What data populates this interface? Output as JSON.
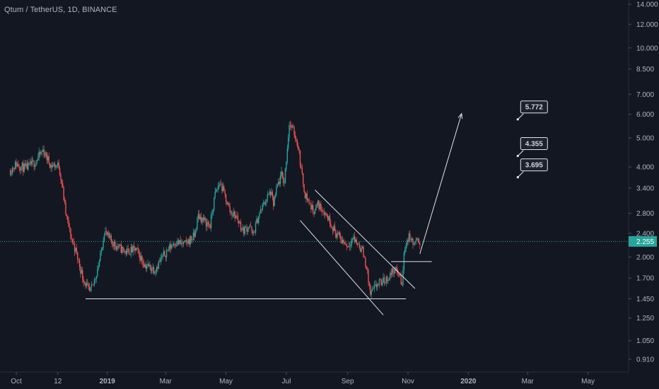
{
  "header": {
    "title": "Qtum / TetherUS, 1D, BINANCE"
  },
  "colors": {
    "background": "#131722",
    "up": "#26a69a",
    "down": "#ef5350",
    "drawing": "#e0e3eb",
    "current_price_line": "#26a69a",
    "axis_text": "#b2b5be"
  },
  "chart_data": {
    "type": "candlestick",
    "symbol": "Qtum / TetherUS",
    "interval": "1D",
    "exchange": "BINANCE",
    "y_scale": "log",
    "ylim": [
      0.85,
      14.2
    ],
    "y_ticks": [
      "0.910",
      "1.050",
      "1.250",
      "1.450",
      "1.700",
      "2.000",
      "2.400",
      "2.800",
      "3.400",
      "4.000",
      "5.000",
      "6.000",
      "7.000",
      "8.500",
      "10.000",
      "12.000",
      "14.000"
    ],
    "x_ticks": [
      {
        "label": "Oct",
        "date": "2018-10-01"
      },
      {
        "label": "12",
        "date": "2018-11-12"
      },
      {
        "label": "2019",
        "date": "2019-01-01"
      },
      {
        "label": "Mar",
        "date": "2019-03-01"
      },
      {
        "label": "May",
        "date": "2019-05-01"
      },
      {
        "label": "Jul",
        "date": "2019-07-01"
      },
      {
        "label": "Sep",
        "date": "2019-09-01"
      },
      {
        "label": "Nov",
        "date": "2019-11-01"
      },
      {
        "label": "2020",
        "date": "2020-01-01"
      },
      {
        "label": "Mar",
        "date": "2020-03-01"
      },
      {
        "label": "May",
        "date": "2020-05-01"
      }
    ],
    "price_path": [
      [
        "2018-09-25",
        3.9
      ],
      [
        "2018-10-01",
        4.1
      ],
      [
        "2018-10-10",
        3.95
      ],
      [
        "2018-10-20",
        4.15
      ],
      [
        "2018-10-28",
        4.55
      ],
      [
        "2018-11-05",
        4.05
      ],
      [
        "2018-11-13",
        4.05
      ],
      [
        "2018-11-16",
        3.55
      ],
      [
        "2018-11-20",
        2.8
      ],
      [
        "2018-11-25",
        2.35
      ],
      [
        "2018-11-30",
        2.1
      ],
      [
        "2018-12-07",
        1.72
      ],
      [
        "2018-12-14",
        1.52
      ],
      [
        "2018-12-18",
        1.62
      ],
      [
        "2018-12-25",
        2.0
      ],
      [
        "2018-12-29",
        2.45
      ],
      [
        "2019-01-03",
        2.3
      ],
      [
        "2019-01-10",
        2.18
      ],
      [
        "2019-01-20",
        2.08
      ],
      [
        "2019-01-30",
        2.12
      ],
      [
        "2019-02-08",
        1.88
      ],
      [
        "2019-02-18",
        1.82
      ],
      [
        "2019-02-28",
        2.05
      ],
      [
        "2019-03-10",
        2.25
      ],
      [
        "2019-03-20",
        2.2
      ],
      [
        "2019-03-30",
        2.35
      ],
      [
        "2019-04-03",
        2.75
      ],
      [
        "2019-04-10",
        2.62
      ],
      [
        "2019-04-15",
        2.55
      ],
      [
        "2019-04-20",
        3.25
      ],
      [
        "2019-04-25",
        3.55
      ],
      [
        "2019-04-30",
        3.2
      ],
      [
        "2019-05-05",
        2.85
      ],
      [
        "2019-05-12",
        2.72
      ],
      [
        "2019-05-18",
        2.45
      ],
      [
        "2019-05-25",
        2.55
      ],
      [
        "2019-05-28",
        2.35
      ],
      [
        "2019-06-03",
        2.75
      ],
      [
        "2019-06-10",
        3.1
      ],
      [
        "2019-06-15",
        3.3
      ],
      [
        "2019-06-18",
        3.0
      ],
      [
        "2019-06-22",
        3.45
      ],
      [
        "2019-06-26",
        3.75
      ],
      [
        "2019-06-29",
        3.55
      ],
      [
        "2019-07-04",
        5.6
      ],
      [
        "2019-07-09",
        5.2
      ],
      [
        "2019-07-13",
        4.7
      ],
      [
        "2019-07-17",
        3.7
      ],
      [
        "2019-07-20",
        3.25
      ],
      [
        "2019-07-24",
        3.05
      ],
      [
        "2019-07-28",
        2.85
      ],
      [
        "2019-08-02",
        3.0
      ],
      [
        "2019-08-08",
        2.85
      ],
      [
        "2019-08-14",
        2.65
      ],
      [
        "2019-08-20",
        2.4
      ],
      [
        "2019-08-26",
        2.28
      ],
      [
        "2019-09-01",
        2.18
      ],
      [
        "2019-09-06",
        2.32
      ],
      [
        "2019-09-12",
        2.2
      ],
      [
        "2019-09-16",
        2.1
      ],
      [
        "2019-09-20",
        1.85
      ],
      [
        "2019-09-24",
        1.5
      ],
      [
        "2019-10-01",
        1.62
      ],
      [
        "2019-10-10",
        1.68
      ],
      [
        "2019-10-18",
        1.82
      ],
      [
        "2019-10-23",
        1.75
      ],
      [
        "2019-10-26",
        1.6
      ],
      [
        "2019-10-28",
        2.05
      ],
      [
        "2019-10-30",
        2.25
      ],
      [
        "2019-11-03",
        2.35
      ],
      [
        "2019-11-06",
        2.2
      ],
      [
        "2019-11-10",
        2.25
      ],
      [
        "2019-11-13",
        2.255
      ]
    ],
    "current_price": "2.255",
    "annotations": [
      {
        "type": "trendline",
        "from": [
          "2018-12-10",
          1.45
        ],
        "to": [
          "2019-10-30",
          1.45
        ]
      },
      {
        "type": "trendline",
        "from": [
          "2019-10-15",
          1.93
        ],
        "to": [
          "2019-11-25",
          1.93
        ]
      },
      {
        "type": "trendline",
        "from": [
          "2019-07-30",
          3.35
        ],
        "to": [
          "2019-11-08",
          1.57
        ]
      },
      {
        "type": "trendline",
        "from": [
          "2019-07-15",
          2.65
        ],
        "to": [
          "2019-10-07",
          1.28
        ]
      },
      {
        "type": "arrow",
        "from": [
          "2019-11-13",
          2.05
        ],
        "to": [
          "2019-12-25",
          6.0
        ]
      },
      {
        "type": "price_label",
        "text": "5.772",
        "at": [
          "2020-02-20",
          5.772
        ]
      },
      {
        "type": "price_label",
        "text": "4.355",
        "at": [
          "2020-02-20",
          4.355
        ]
      },
      {
        "type": "price_label",
        "text": "3.695",
        "at": [
          "2020-02-20",
          3.695
        ]
      }
    ]
  }
}
